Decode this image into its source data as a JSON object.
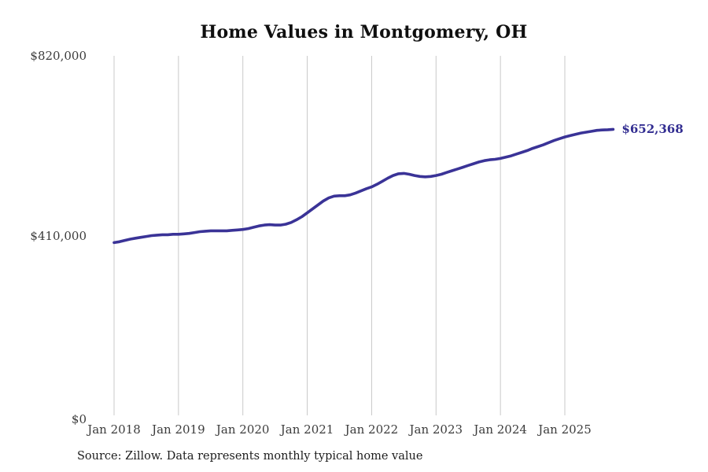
{
  "title": "Home Values in Montgomery, OH",
  "source_note": "Source: Zillow. Data represents monthly typical home value",
  "end_label": "$652,368",
  "colors": {
    "line": "#3a3397",
    "end_label": "#322d91",
    "grid": "#c9c9c9",
    "axis_text": "#3c3c3c",
    "title_text": "#0f0f0f"
  },
  "chart_data": {
    "type": "line",
    "title": "Home Values in Montgomery, OH",
    "xlabel": "",
    "ylabel": "",
    "x_start_month": "2018-01",
    "x_end_month": "2025-10",
    "x_tick_labels": [
      "Jan 2018",
      "Jan 2019",
      "Jan 2020",
      "Jan 2021",
      "Jan 2022",
      "Jan 2023",
      "Jan 2024",
      "Jan 2025"
    ],
    "y_ticks": [
      0,
      410000,
      820000
    ],
    "y_tick_labels": [
      "$0",
      "$410,000",
      "$820,000"
    ],
    "ylim": [
      0,
      820000
    ],
    "grid": "vertical-only",
    "legend": "none",
    "end_value": 652368,
    "series": [
      {
        "name": "Monthly typical home value (USD)",
        "monthly_values": [
          394000,
          396000,
          399000,
          402000,
          404000,
          406000,
          408000,
          410000,
          411000,
          412000,
          412000,
          413000,
          413000,
          414000,
          415000,
          417000,
          419000,
          420000,
          421000,
          421000,
          421000,
          421000,
          422000,
          423000,
          424000,
          426000,
          429000,
          432000,
          434000,
          435000,
          434000,
          434000,
          436000,
          440000,
          446000,
          453000,
          462000,
          471000,
          480000,
          489000,
          496000,
          500000,
          501000,
          501000,
          503000,
          507000,
          512000,
          517000,
          521000,
          527000,
          534000,
          541000,
          547000,
          551000,
          552000,
          550000,
          547000,
          545000,
          544000,
          545000,
          547000,
          550000,
          554000,
          558000,
          562000,
          566000,
          570000,
          574000,
          578000,
          581000,
          583000,
          584000,
          586000,
          589000,
          592000,
          596000,
          600000,
          604000,
          609000,
          613000,
          617000,
          622000,
          627000,
          631000,
          635000,
          638000,
          641000,
          644000,
          646000,
          648000,
          650000,
          651000,
          651500,
          652368
        ]
      }
    ]
  }
}
